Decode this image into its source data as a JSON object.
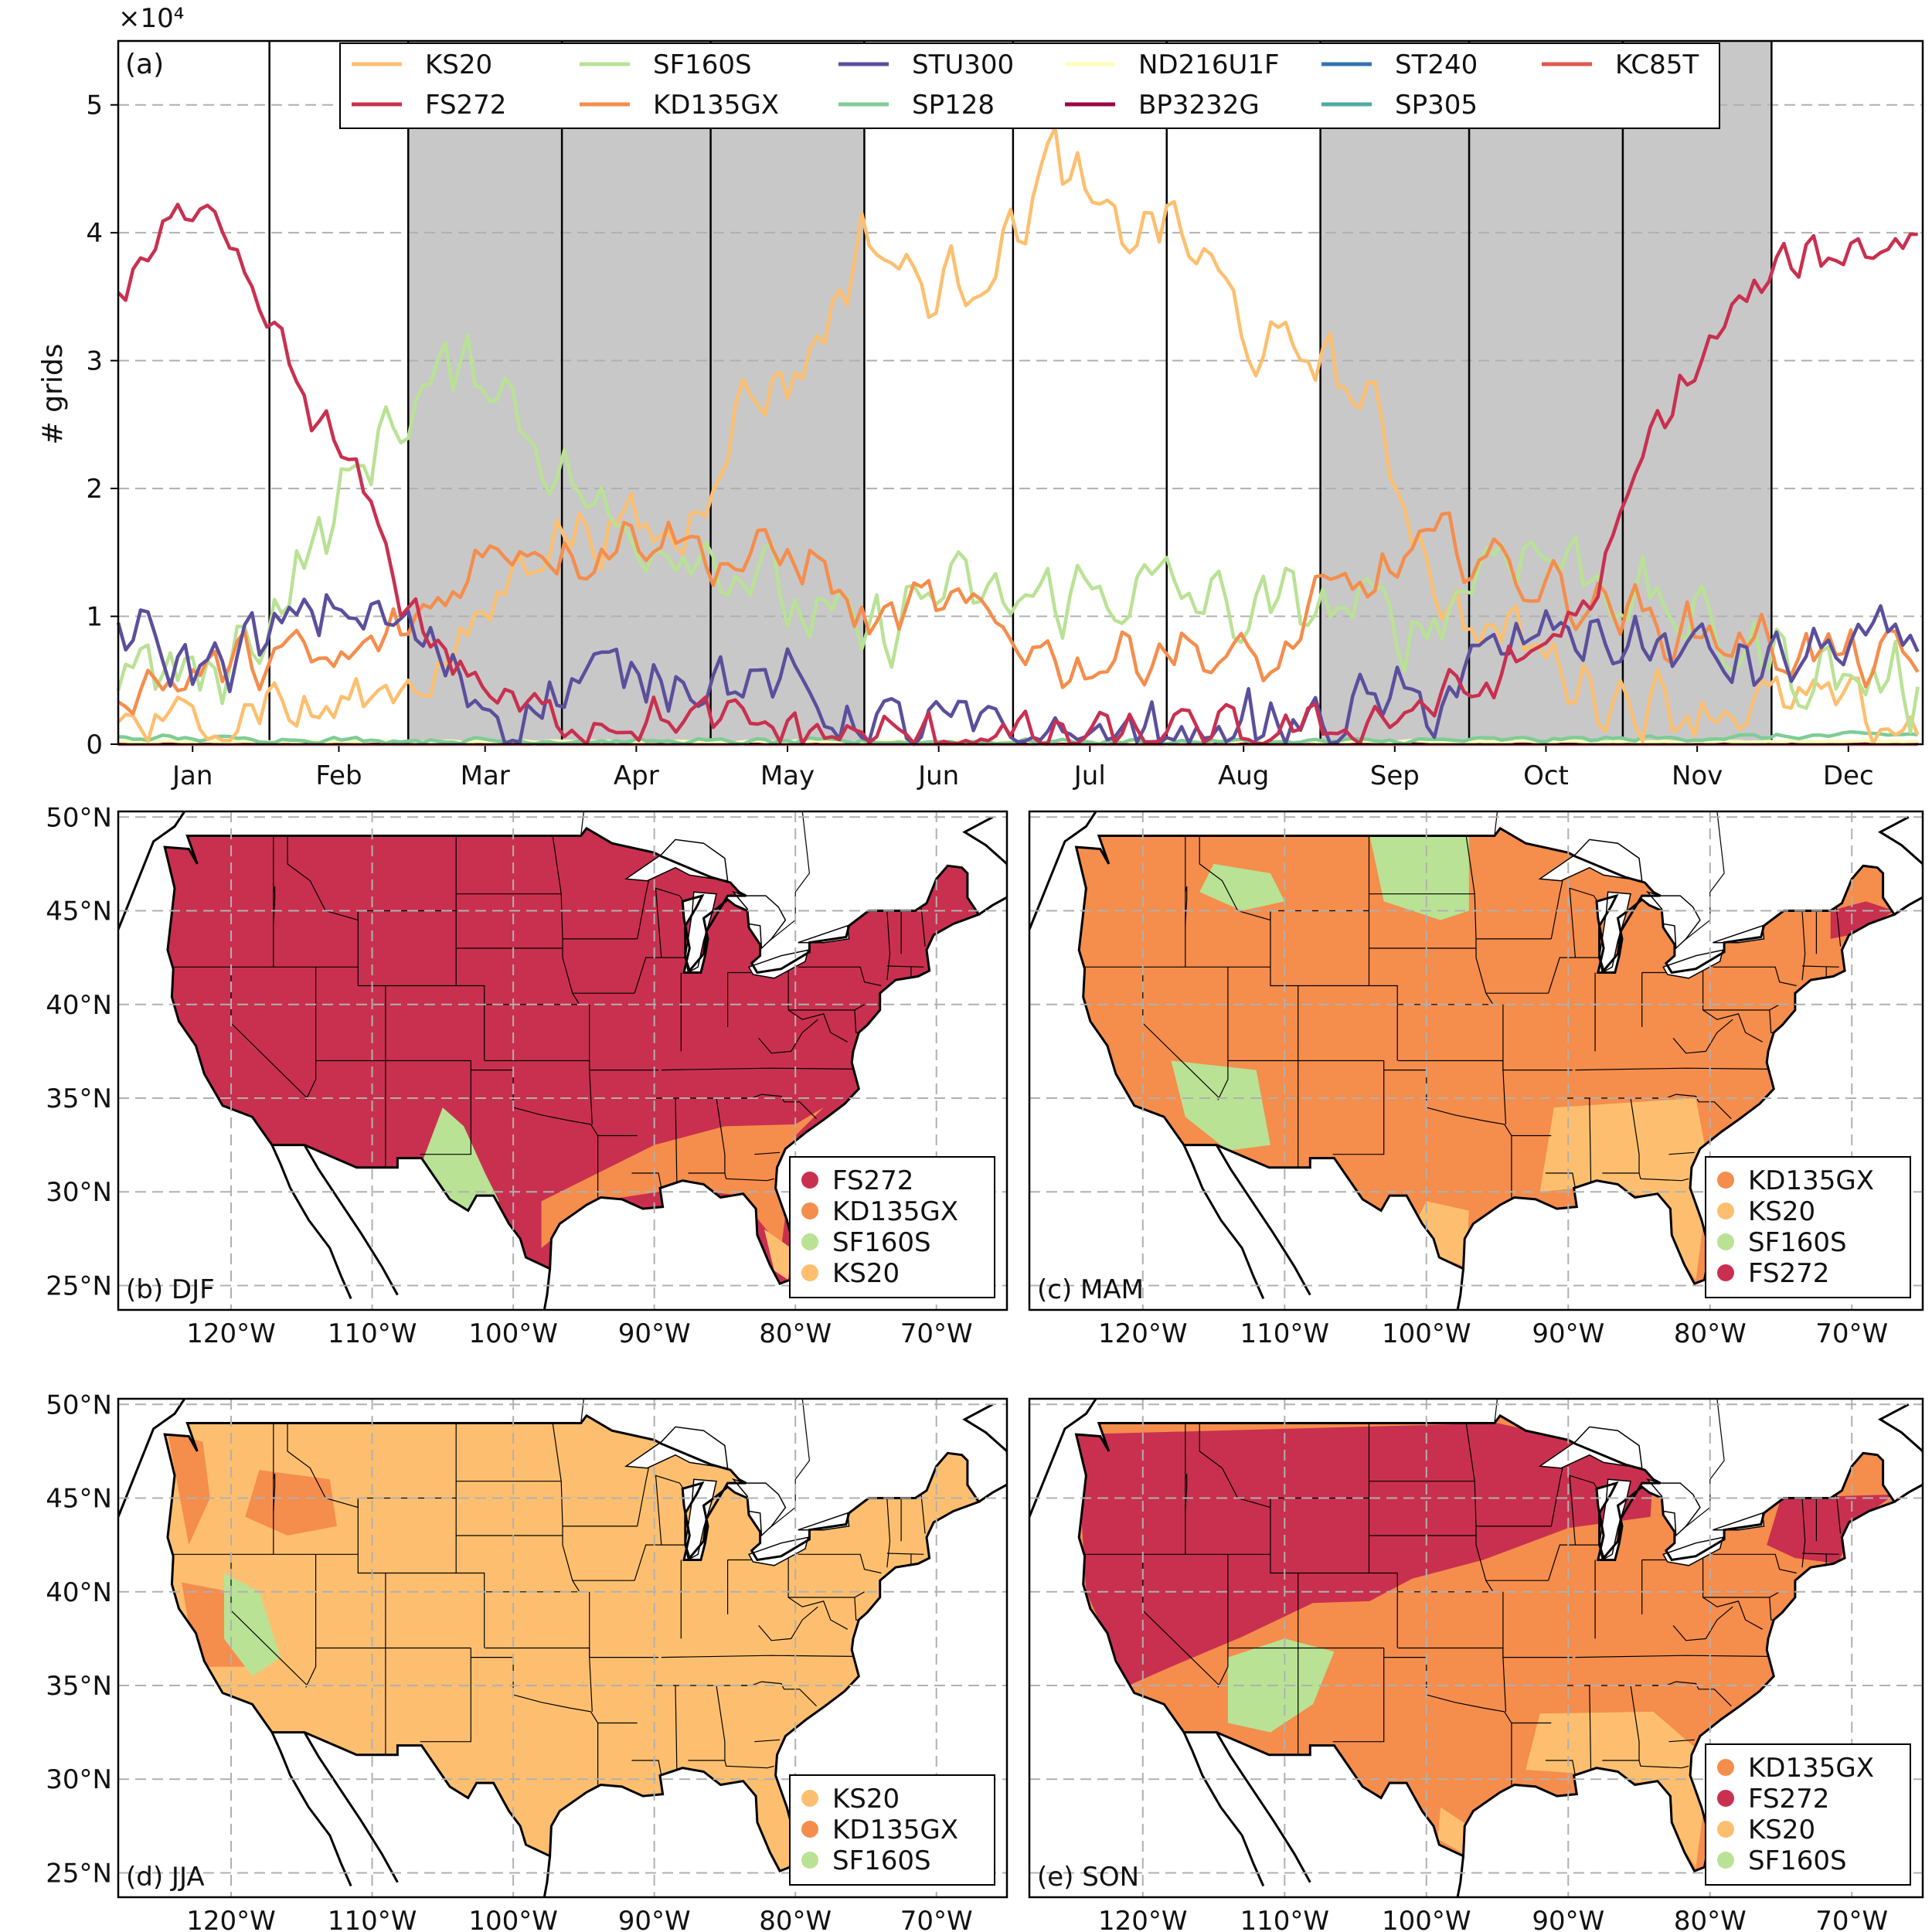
{
  "chart_data": [
    {
      "type": "line",
      "panel_label": "(a)",
      "offset_text": "×10⁴",
      "ylabel": "# grids",
      "ylim": [
        0,
        5.5
      ],
      "yticks": [
        "0",
        "1",
        "2",
        "3",
        "4",
        "5"
      ],
      "months": [
        "Jan",
        "Feb",
        "Mar",
        "Apr",
        "May",
        "Jun",
        "Jul",
        "Aug",
        "Sep",
        "Oct",
        "Nov",
        "Dec"
      ],
      "month_days": [
        31,
        28,
        31,
        30,
        31,
        30,
        31,
        31,
        30,
        31,
        30,
        31
      ],
      "shaded_months": [
        "Mar",
        "Apr",
        "May",
        "Sep",
        "Oct",
        "Nov"
      ],
      "grid": "horizontal dashed",
      "legend_position": "top",
      "series": [
        {
          "name": "KS20",
          "color": "#fdbf6f",
          "anchors": [
            [
              1,
              0.15
            ],
            [
              20,
              0.12
            ],
            [
              31,
              0.4
            ],
            [
              40,
              0.2
            ],
            [
              59,
              0.5
            ],
            [
              70,
              0.7
            ],
            [
              85,
              1.6
            ],
            [
              100,
              1.7
            ],
            [
              115,
              1.6
            ],
            [
              125,
              2.6
            ],
            [
              140,
              3.0
            ],
            [
              152,
              4.0
            ],
            [
              165,
              3.5
            ],
            [
              180,
              3.9
            ],
            [
              190,
              4.6
            ],
            [
              200,
              4.0
            ],
            [
              213,
              4.1
            ],
            [
              225,
              3.5
            ],
            [
              232,
              3.0
            ],
            [
              243,
              3.1
            ],
            [
              255,
              2.5
            ],
            [
              270,
              1.0
            ],
            [
              285,
              0.8
            ],
            [
              300,
              0.4
            ],
            [
              315,
              0.3
            ],
            [
              330,
              0.3
            ],
            [
              345,
              0.3
            ],
            [
              365,
              0.1
            ]
          ],
          "amplitude": 0.35
        },
        {
          "name": "FS272",
          "color": "#c9304f",
          "anchors": [
            [
              1,
              3.5
            ],
            [
              10,
              4.1
            ],
            [
              20,
              4.0
            ],
            [
              31,
              3.3
            ],
            [
              40,
              2.6
            ],
            [
              50,
              2.0
            ],
            [
              59,
              1.1
            ],
            [
              70,
              0.6
            ],
            [
              80,
              0.3
            ],
            [
              90,
              0.2
            ],
            [
              110,
              0.2
            ],
            [
              130,
              0.15
            ],
            [
              152,
              0.05
            ],
            [
              200,
              0.05
            ],
            [
              243,
              0.1
            ],
            [
              260,
              0.25
            ],
            [
              280,
              0.5
            ],
            [
              300,
              1.2
            ],
            [
              310,
              2.4
            ],
            [
              320,
              3.0
            ],
            [
              330,
              3.5
            ],
            [
              340,
              3.8
            ],
            [
              355,
              3.9
            ],
            [
              365,
              4.0
            ]
          ],
          "amplitude": 0.25
        },
        {
          "name": "SF160S",
          "color": "#b9e295",
          "anchors": [
            [
              1,
              0.6
            ],
            [
              20,
              0.5
            ],
            [
              31,
              1.0
            ],
            [
              45,
              1.8
            ],
            [
              55,
              2.5
            ],
            [
              65,
              2.8
            ],
            [
              75,
              3.0
            ],
            [
              85,
              2.4
            ],
            [
              100,
              1.7
            ],
            [
              115,
              1.6
            ],
            [
              130,
              1.3
            ],
            [
              140,
              1.0
            ],
            [
              152,
              0.8
            ],
            [
              165,
              1.2
            ],
            [
              180,
              1.1
            ],
            [
              200,
              1.2
            ],
            [
              213,
              1.2
            ],
            [
              230,
              1.0
            ],
            [
              243,
              1.1
            ],
            [
              255,
              1.0
            ],
            [
              265,
              0.9
            ],
            [
              280,
              1.6
            ],
            [
              295,
              1.4
            ],
            [
              310,
              1.1
            ],
            [
              325,
              0.8
            ],
            [
              340,
              0.6
            ],
            [
              355,
              0.5
            ],
            [
              365,
              0.4
            ]
          ],
          "amplitude": 0.4
        },
        {
          "name": "KD135GX",
          "color": "#f58d4c",
          "anchors": [
            [
              1,
              0.45
            ],
            [
              20,
              0.55
            ],
            [
              31,
              0.7
            ],
            [
              45,
              0.6
            ],
            [
              59,
              0.9
            ],
            [
              70,
              1.3
            ],
            [
              80,
              1.6
            ],
            [
              95,
              1.5
            ],
            [
              110,
              1.7
            ],
            [
              125,
              1.4
            ],
            [
              140,
              1.5
            ],
            [
              152,
              0.9
            ],
            [
              165,
              1.1
            ],
            [
              180,
              0.9
            ],
            [
              195,
              0.6
            ],
            [
              213,
              0.8
            ],
            [
              225,
              0.65
            ],
            [
              235,
              0.6
            ],
            [
              243,
              1.1
            ],
            [
              255,
              1.3
            ],
            [
              270,
              1.6
            ],
            [
              285,
              1.3
            ],
            [
              300,
              1.1
            ],
            [
              315,
              0.9
            ],
            [
              330,
              0.8
            ],
            [
              345,
              0.7
            ],
            [
              365,
              0.6
            ]
          ],
          "amplitude": 0.3
        },
        {
          "name": "STU300",
          "color": "#5b4f9d",
          "anchors": [
            [
              1,
              0.9
            ],
            [
              15,
              0.6
            ],
            [
              31,
              0.8
            ],
            [
              45,
              1.1
            ],
            [
              59,
              0.9
            ],
            [
              70,
              0.5
            ],
            [
              80,
              0.2
            ],
            [
              95,
              0.5
            ],
            [
              110,
              0.6
            ],
            [
              125,
              0.5
            ],
            [
              140,
              0.4
            ],
            [
              152,
              0.1
            ],
            [
              165,
              0.15
            ],
            [
              180,
              0.05
            ],
            [
              213,
              0.05
            ],
            [
              230,
              0.1
            ],
            [
              243,
              0.15
            ],
            [
              255,
              0.3
            ],
            [
              265,
              0.3
            ],
            [
              275,
              0.6
            ],
            [
              290,
              0.9
            ],
            [
              305,
              0.8
            ],
            [
              320,
              0.7
            ],
            [
              335,
              0.6
            ],
            [
              350,
              0.8
            ],
            [
              365,
              0.7
            ]
          ],
          "amplitude": 0.35
        },
        {
          "name": "SP128",
          "color": "#7fcc97",
          "anchors": [
            [
              1,
              0.05
            ],
            [
              30,
              0.04
            ],
            [
              60,
              0.03
            ],
            [
              120,
              0.02
            ],
            [
              240,
              0.02
            ],
            [
              300,
              0.04
            ],
            [
              340,
              0.06
            ],
            [
              365,
              0.08
            ]
          ],
          "amplitude": 0.03
        },
        {
          "name": "ND216U1F",
          "color": "#fefeb8",
          "anchors": [
            [
              1,
              0.02
            ],
            [
              365,
              0.02
            ]
          ],
          "amplitude": 0.01
        },
        {
          "name": "BP3232G",
          "color": "#9e0142",
          "anchors": [
            [
              1,
              0.01
            ],
            [
              365,
              0.01
            ]
          ],
          "amplitude": 0.005
        },
        {
          "name": "ST240",
          "color": "#3274b2",
          "anchors": [
            [
              1,
              0.01
            ],
            [
              365,
              0.01
            ]
          ],
          "amplitude": 0.005
        },
        {
          "name": "SP305",
          "color": "#4fa9a4",
          "anchors": [
            [
              1,
              0.01
            ],
            [
              365,
              0.01
            ]
          ],
          "amplitude": 0.005
        },
        {
          "name": "KC85T",
          "color": "#e2574c",
          "anchors": [
            [
              1,
              0.0
            ],
            [
              365,
              0.0
            ]
          ],
          "amplitude": 0.0
        }
      ]
    },
    {
      "type": "map",
      "panel_label": "(b) DJF",
      "legend": [
        "FS272",
        "KD135GX",
        "SF160S",
        "KS20"
      ],
      "base": "FS272",
      "regions": [
        {
          "class": "KD135GX",
          "lon": [
            -98,
            -94,
            -90,
            -85,
            -80,
            -78,
            -80,
            -81,
            -84,
            -88,
            -94,
            -98
          ],
          "lat": [
            29.5,
            31,
            32.5,
            33.5,
            33.6,
            34.5,
            33,
            27,
            29.8,
            30.2,
            29.5,
            27
          ]
        },
        {
          "class": "SF160S",
          "lon": [
            -107,
            -105,
            -103.5,
            -102,
            -101,
            -103,
            -106
          ],
          "lat": [
            30.5,
            34.5,
            33.5,
            31,
            29.5,
            29,
            29.5
          ]
        },
        {
          "class": "KS20",
          "lon": [
            -82.2,
            -80.3,
            -80.5,
            -81.5
          ],
          "lat": [
            28.0,
            27.0,
            25.3,
            25.8
          ]
        }
      ]
    },
    {
      "type": "map",
      "panel_label": "(c) MAM",
      "legend": [
        "KD135GX",
        "KS20",
        "SF160S",
        "FS272"
      ],
      "base": "KD135GX",
      "regions": [
        {
          "class": "SF160S",
          "lon": [
            -104,
            -97,
            -97,
            -99,
            -103
          ],
          "lat": [
            49,
            49,
            45,
            44.5,
            45.5
          ]
        },
        {
          "class": "SF160S",
          "lon": [
            -115,
            -111,
            -110,
            -113,
            -116
          ],
          "lat": [
            47.5,
            47,
            45.5,
            45,
            46
          ]
        },
        {
          "class": "SF160S",
          "lon": [
            -118,
            -112,
            -111,
            -114,
            -117
          ],
          "lat": [
            37,
            36.5,
            32.5,
            32.2,
            34
          ]
        },
        {
          "class": "KS20",
          "lon": [
            -91,
            -81,
            -80,
            -81,
            -85,
            -88,
            -92
          ],
          "lat": [
            34.5,
            35,
            31,
            25.3,
            29.8,
            30.3,
            30
          ]
        },
        {
          "class": "KS20",
          "lon": [
            -100,
            -97,
            -97.2,
            -99,
            -101
          ],
          "lat": [
            29.5,
            29,
            26,
            26.5,
            28
          ]
        },
        {
          "class": "FS272",
          "lon": [
            -71.5,
            -69,
            -67,
            -69.5,
            -71.5
          ],
          "lat": [
            45,
            45.5,
            45,
            43.8,
            43.5
          ]
        }
      ]
    },
    {
      "type": "map",
      "panel_label": "(d) JJA",
      "legend": [
        "KS20",
        "KD135GX",
        "SF160S"
      ],
      "base": "KS20",
      "regions": [
        {
          "class": "KD135GX",
          "lon": [
            -124.5,
            -122,
            -121.5,
            -123
          ],
          "lat": [
            48.5,
            48,
            45,
            42.5
          ]
        },
        {
          "class": "KD135GX",
          "lon": [
            -118,
            -113,
            -112.5,
            -116,
            -119
          ],
          "lat": [
            46.5,
            46,
            43.5,
            43,
            44
          ]
        },
        {
          "class": "KD135GX",
          "lon": [
            -123.5,
            -120,
            -119,
            -122.5
          ],
          "lat": [
            40.5,
            40,
            36,
            36
          ]
        },
        {
          "class": "SF160S",
          "lon": [
            -120.5,
            -118,
            -116.5,
            -118.5,
            -120.5
          ],
          "lat": [
            41,
            40,
            36.5,
            35.5,
            37.5
          ]
        }
      ]
    },
    {
      "type": "map",
      "panel_label": "(e) SON",
      "legend": [
        "KD135GX",
        "FS272",
        "KS20",
        "SF160S"
      ],
      "base": "KD135GX",
      "regions": [
        {
          "class": "FS272",
          "lon": [
            -124.7,
            -95,
            -89,
            -84,
            -84.2,
            -90,
            -96,
            -101,
            -104,
            -108,
            -113,
            -118,
            -121,
            -124
          ],
          "lat": [
            48.4,
            49,
            48,
            46.5,
            44,
            43.4,
            41.7,
            40.7,
            39.5,
            39.4,
            37.6,
            36,
            35,
            40
          ]
        },
        {
          "class": "FS272",
          "lon": [
            -75,
            -67,
            -69.5,
            -71,
            -74,
            -76
          ],
          "lat": [
            45,
            45.2,
            43.8,
            41.5,
            41.8,
            42.5
          ]
        },
        {
          "class": "SF160S",
          "lon": [
            -114,
            -110,
            -106.5,
            -108,
            -111,
            -114
          ],
          "lat": [
            36.5,
            37.5,
            36.8,
            34,
            32.5,
            33
          ]
        },
        {
          "class": "KS20",
          "lon": [
            -92,
            -84,
            -80,
            -81,
            -85,
            -89,
            -93
          ],
          "lat": [
            33.5,
            33.6,
            31,
            25.3,
            29.8,
            30.3,
            30.5
          ]
        },
        {
          "class": "KS20",
          "lon": [
            -99,
            -97,
            -97.3,
            -99.2
          ],
          "lat": [
            28.5,
            27.5,
            26,
            26.8
          ]
        }
      ]
    }
  ],
  "map_axes": {
    "xticks": [
      "120°W",
      "110°W",
      "100°W",
      "90°W",
      "80°W",
      "70°W"
    ],
    "yticks": [
      "50°N",
      "45°N",
      "40°N",
      "35°N",
      "30°N",
      "25°N"
    ],
    "lon_range": [
      -128,
      -65
    ],
    "lat_range": [
      23.7,
      50.3
    ]
  },
  "colors": {
    "KS20": "#fdbf6f",
    "FS272": "#c9304f",
    "SF160S": "#b9e295",
    "KD135GX": "#f58d4c",
    "shade": "#c8c8c8",
    "grid": "#b0b0b0"
  }
}
